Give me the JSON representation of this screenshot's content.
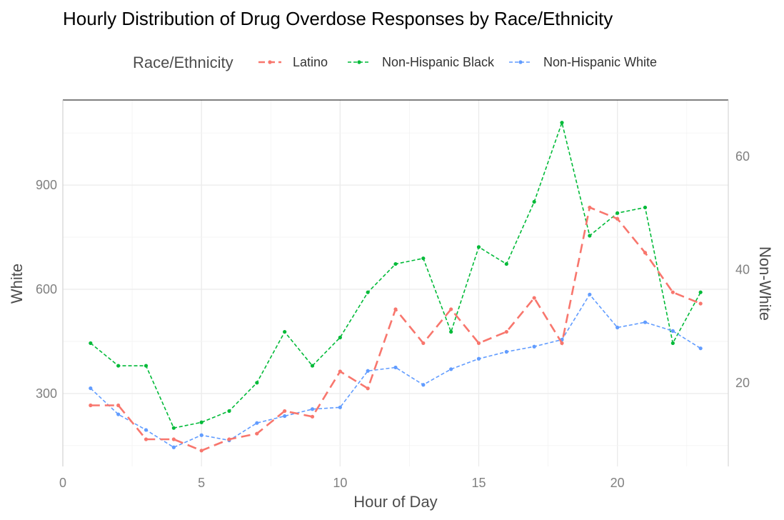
{
  "chart_data": {
    "type": "line",
    "title": "Hourly Distribution of Drug Overdose Responses by Race/Ethnicity",
    "xlabel": "Hour of Day",
    "ylabel": "White",
    "y2label": "Non-White",
    "legend_title": "Race/Ethnicity",
    "legend_position": "top",
    "x_ticks": [
      0,
      5,
      10,
      15,
      20
    ],
    "y_ticks": [
      300,
      600,
      900
    ],
    "y2_ticks": [
      20,
      40,
      60
    ],
    "xlim": [
      0,
      24
    ],
    "ylim": [
      90,
      1145
    ],
    "y2lim": [
      5.2,
      70
    ],
    "grid": true,
    "x": [
      1,
      2,
      3,
      4,
      5,
      6,
      7,
      8,
      9,
      10,
      11,
      12,
      13,
      14,
      15,
      16,
      17,
      18,
      19,
      20,
      21,
      22,
      23
    ],
    "series": [
      {
        "name": "Latino",
        "axis": "right",
        "color": "#F8766D",
        "dash": "long",
        "values": [
          16,
          16,
          10,
          10,
          8,
          10,
          11,
          15,
          14,
          22,
          19,
          33,
          27,
          33,
          27,
          29,
          35,
          27,
          51,
          49,
          43,
          36,
          34
        ]
      },
      {
        "name": "Non-Hispanic Black",
        "axis": "right",
        "color": "#00BA38",
        "dash": "short",
        "values": [
          27,
          23,
          23,
          12,
          13,
          15,
          20,
          29,
          23,
          28,
          36,
          41,
          42,
          29,
          44,
          41,
          52,
          66,
          46,
          50,
          51,
          27,
          36
        ]
      },
      {
        "name": "Non-Hispanic White",
        "axis": "left",
        "color": "#619CFF",
        "dash": "short",
        "values": [
          315,
          240,
          195,
          145,
          180,
          165,
          215,
          235,
          255,
          260,
          365,
          375,
          325,
          370,
          400,
          420,
          435,
          455,
          585,
          490,
          505,
          480,
          430
        ]
      }
    ]
  }
}
